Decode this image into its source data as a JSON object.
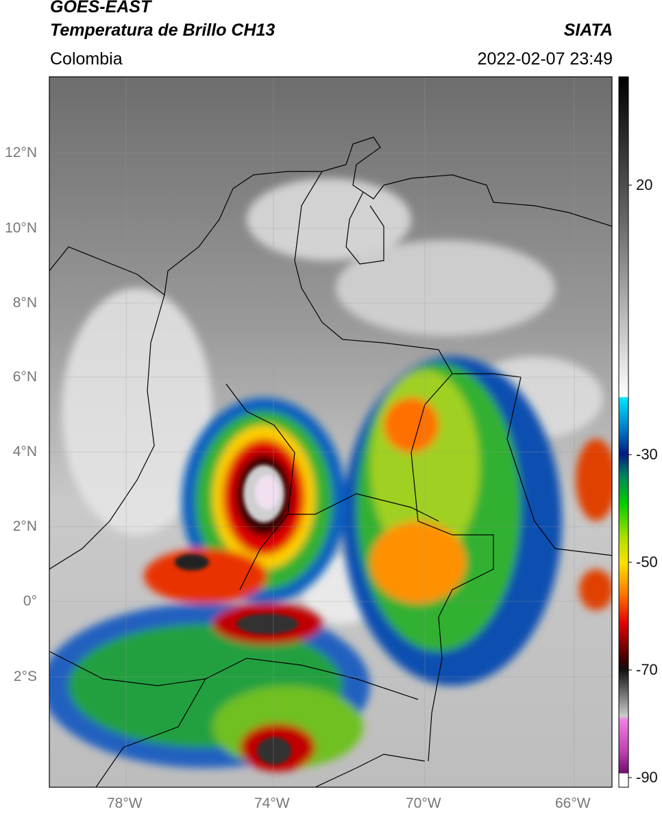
{
  "header": {
    "title1": "GOES-EAST",
    "title2": "Temperatura de Brillo CH13",
    "agency": "SIATA",
    "region": "Colombia",
    "datetime": "2022-02-07 23:49"
  },
  "map": {
    "lat_labels": [
      "12°N",
      "10°N",
      "8°N",
      "6°N",
      "4°N",
      "2°N",
      "0°",
      "2°S"
    ],
    "lon_labels": [
      "78°W",
      "74°W",
      "70°W",
      "66°W"
    ]
  },
  "colorbar": {
    "ticks": [
      "20",
      "-30",
      "-50",
      "-70",
      "-90"
    ]
  }
}
